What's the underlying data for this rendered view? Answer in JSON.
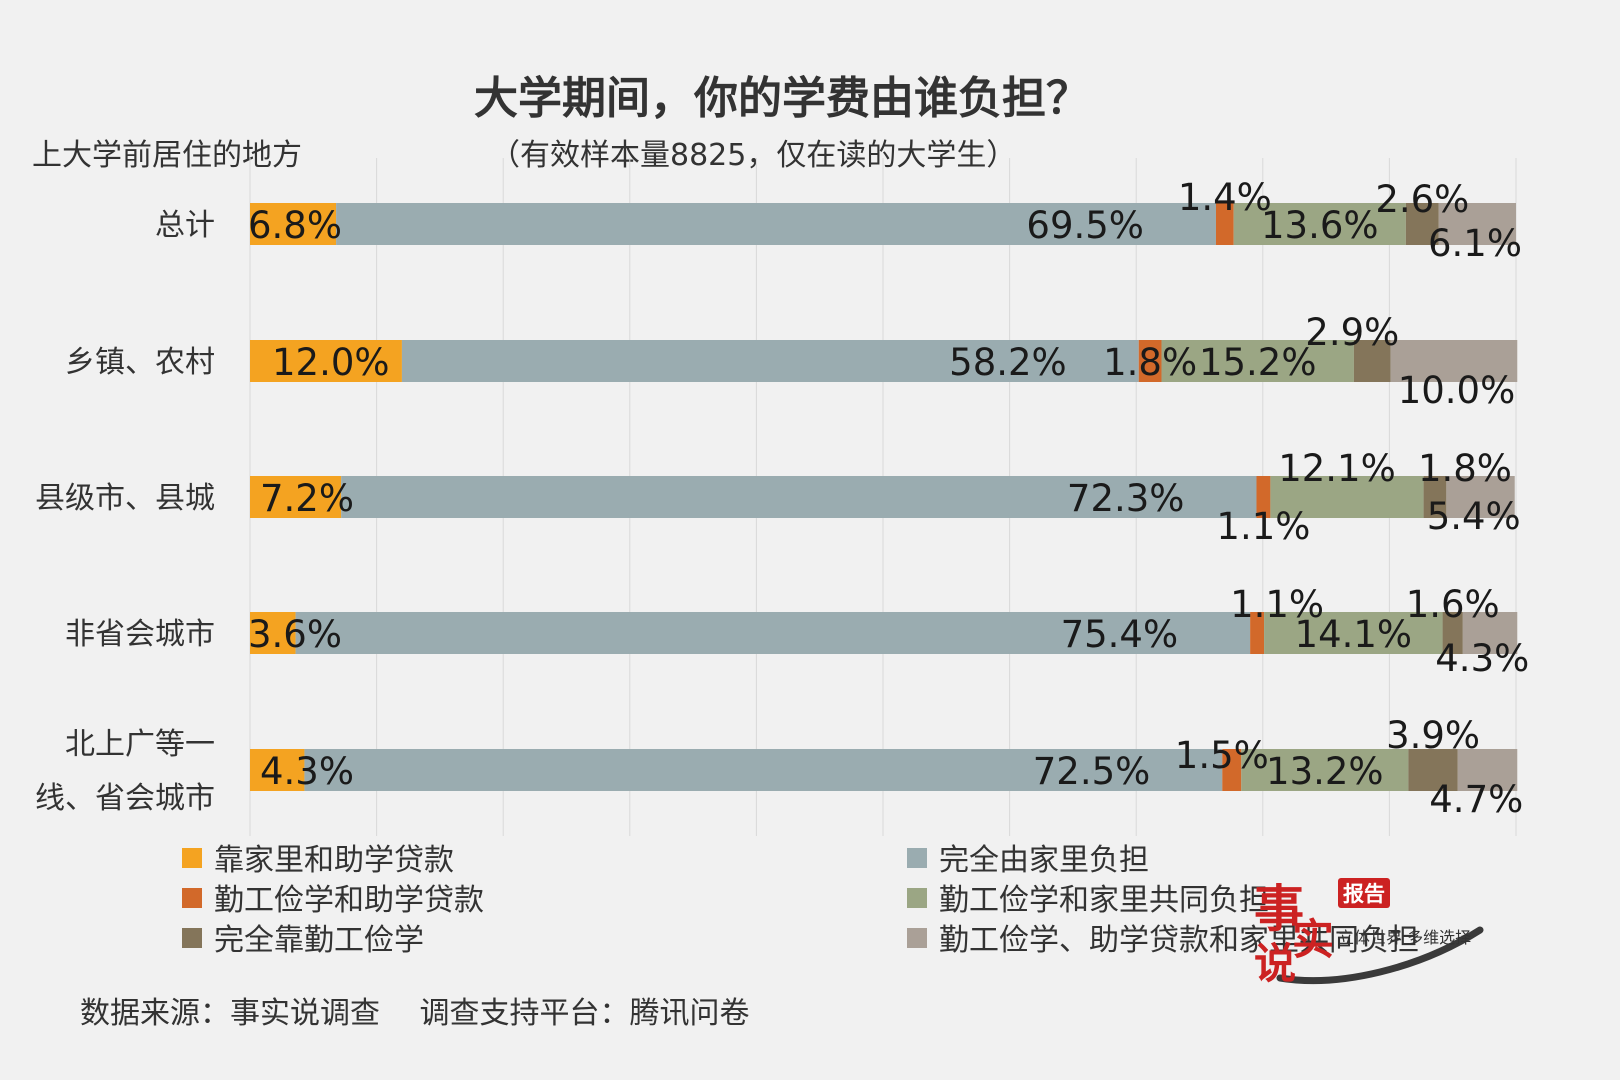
{
  "chart_data": {
    "type": "bar",
    "orientation": "horizontal",
    "stacked": "percent",
    "title": "大学期间，你的学费由谁负担？",
    "subtitle": "（有效样本量8825，仅在读的大学生）",
    "ylabel": "上大学前居住的地方",
    "xlim": [
      0,
      100
    ],
    "grid": true,
    "legend_position": "bottom",
    "categories": [
      "总计",
      "乡镇、农村",
      "县级市、县城",
      "非省会城市",
      "北上广等一线、省会城市"
    ],
    "category_lines": [
      [
        "总计"
      ],
      [
        "乡镇、农村"
      ],
      [
        "县级市、县城"
      ],
      [
        "非省会城市"
      ],
      [
        "北上广等一",
        "线、省会城市"
      ]
    ],
    "series": [
      {
        "name": "靠家里和助学贷款",
        "color": "#f4a321",
        "values": [
          6.8,
          12.0,
          7.2,
          3.6,
          4.3
        ]
      },
      {
        "name": "完全由家里负担",
        "color": "#9aacb0",
        "values": [
          69.5,
          58.2,
          72.3,
          75.4,
          72.5
        ]
      },
      {
        "name": "勤工俭学和助学贷款",
        "color": "#d2692a",
        "values": [
          1.4,
          1.8,
          1.1,
          1.1,
          1.5
        ]
      },
      {
        "name": "勤工俭学和家里共同负担",
        "color": "#9ba684",
        "values": [
          13.6,
          15.2,
          12.1,
          14.1,
          13.2
        ]
      },
      {
        "name": "完全靠勤工俭学",
        "color": "#84755a",
        "values": [
          2.6,
          2.9,
          1.8,
          1.6,
          3.9
        ]
      },
      {
        "name": "勤工俭学、助学贷款和家里共同负担",
        "color": "#aaa097",
        "values": [
          6.1,
          10.0,
          5.4,
          4.3,
          4.7
        ]
      }
    ],
    "data_labels": [
      [
        "6.8%",
        "69.5%",
        "1.4%",
        "13.6%",
        "2.6%",
        "6.1%"
      ],
      [
        "12.0%",
        "58.2%",
        "1.8%",
        "15.2%",
        "2.9%",
        "10.0%"
      ],
      [
        "7.2%",
        "72.3%",
        "1.1%",
        "12.1%",
        "1.8%",
        "5.4%"
      ],
      [
        "3.6%",
        "75.4%",
        "1.1%",
        "14.1%",
        "1.6%",
        "4.3%"
      ],
      [
        "4.3%",
        "72.5%",
        "1.5%",
        "13.2%",
        "3.9%",
        "4.7%"
      ]
    ]
  },
  "footer": {
    "source": "数据来源：事实说调查　 调查支持平台：腾讯问卷"
  },
  "logo": {
    "main": "事实说",
    "badge": "报告",
    "tagline": "立体世界 多维选择"
  }
}
